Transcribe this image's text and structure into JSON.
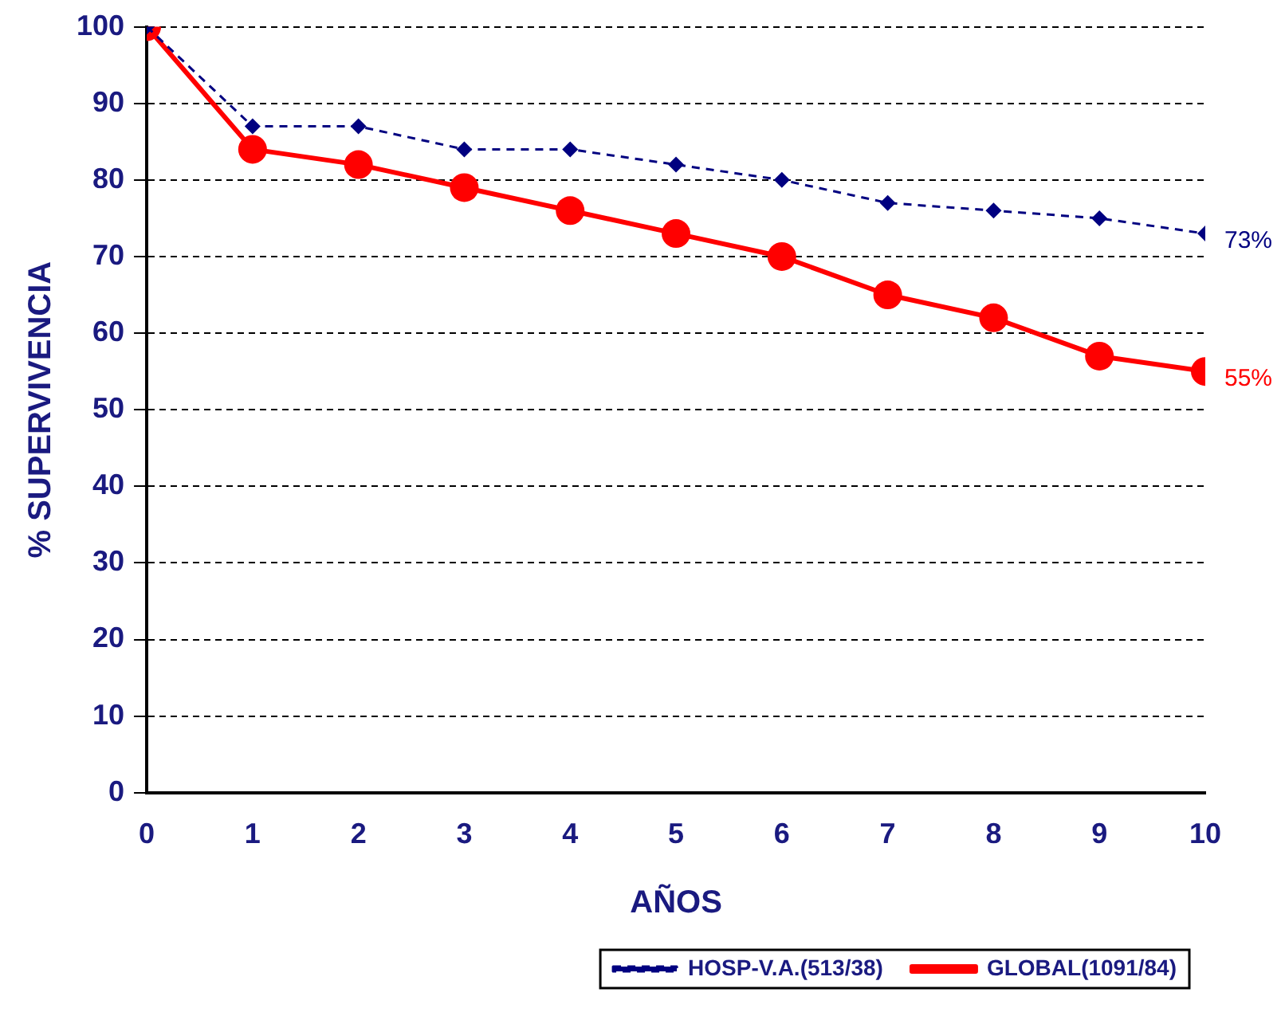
{
  "chart_data": {
    "type": "line",
    "xlabel": "AÑOS",
    "ylabel": "% SUPERVIVENCIA",
    "x": [
      0,
      1,
      2,
      3,
      4,
      5,
      6,
      7,
      8,
      9,
      10
    ],
    "series": [
      {
        "name": "HOSP-V.A.(513/38)",
        "color": "#000080",
        "values": [
          100,
          87,
          87,
          84,
          84,
          82,
          80,
          77,
          76,
          75,
          73
        ],
        "marker": "diamond",
        "line_style": "dashed",
        "value_labels": [
          null,
          null,
          null,
          null,
          null,
          null,
          null,
          null,
          null,
          null,
          "73%"
        ]
      },
      {
        "name": "GLOBAL(1091/84)",
        "color": "#ff0000",
        "values": [
          100,
          84,
          82,
          79,
          76,
          73,
          70,
          65,
          62,
          57,
          55
        ],
        "marker": "circle",
        "line_style": "solid",
        "value_labels": [
          null,
          null,
          null,
          null,
          null,
          null,
          null,
          null,
          null,
          null,
          "55%"
        ]
      }
    ],
    "xlim": [
      0,
      10
    ],
    "xticks": [
      0,
      1,
      2,
      3,
      4,
      5,
      6,
      7,
      8,
      9,
      10
    ],
    "ylim": [
      0,
      100
    ],
    "yticks": [
      0,
      10,
      20,
      30,
      40,
      50,
      60,
      70,
      80,
      90,
      100
    ],
    "grid": "y",
    "legend": "bottom right"
  }
}
